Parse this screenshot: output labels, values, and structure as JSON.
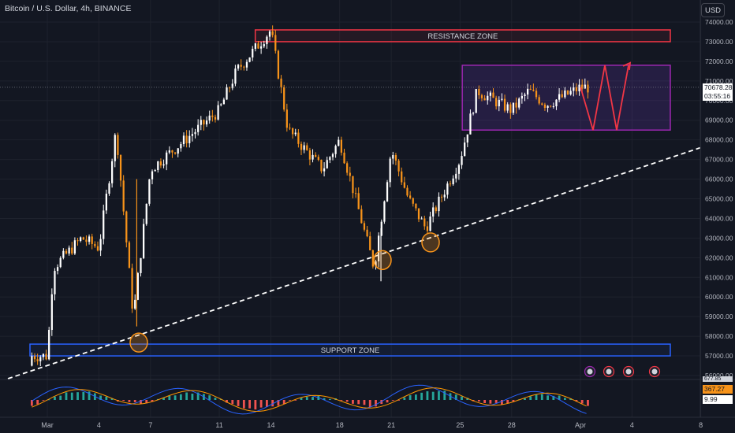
{
  "header": {
    "symbol_title": "Bitcoin / U.S. Dollar, 4h, BINANCE",
    "currency_label": "USD"
  },
  "price_axis": {
    "ticks": [
      "74000.00",
      "73000.00",
      "72000.00",
      "71000.00",
      "70000.00",
      "69000.00",
      "68000.00",
      "67000.00",
      "66000.00",
      "65000.00",
      "64000.00",
      "63000.00",
      "62000.00",
      "61000.00",
      "60000.00",
      "59000.00",
      "58000.00",
      "57000.00",
      "56000.00"
    ],
    "live_price": "70678.28",
    "countdown": "03:55:16"
  },
  "time_axis": {
    "labels": [
      "Mar",
      "4",
      "7",
      "11",
      "14",
      "18",
      "21",
      "25",
      "28",
      "Apr",
      "4",
      "8"
    ]
  },
  "indicator": {
    "macd_value": "367.27",
    "signal_value": "9.99",
    "top_value": "677.85"
  },
  "annotations": {
    "resistance_label": "RESISTANCE ZONE",
    "support_label": "SUPPORT ZONE"
  },
  "colors": {
    "background": "#131722",
    "bull_candle": "#ffffff",
    "bear_candle": "#f7931a",
    "resistance": "#f23645",
    "support": "#2962ff",
    "range_box": "#9c27b0",
    "forecast_arrow": "#f23645",
    "trendline": "#ffffff",
    "macd_line": "#2962ff",
    "signal_line": "#ff9800",
    "hist_positive": "#26a69a",
    "hist_negative": "#ef5350"
  },
  "chart_data": {
    "type": "candlestick",
    "title": "Bitcoin / U.S. Dollar, 4h, BINANCE",
    "ylim": [
      56000,
      74200
    ],
    "x_range": [
      "Mar 1",
      "Apr 8"
    ],
    "keypoints": [
      {
        "t": "Mar 1",
        "price": 57000
      },
      {
        "t": "Mar 1",
        "price": 61500
      },
      {
        "t": "Mar 3",
        "price": 63000
      },
      {
        "t": "Mar 4",
        "price": 62500
      },
      {
        "t": "Mar 5",
        "price": 68500
      },
      {
        "t": "Mar 6",
        "price": 59000
      },
      {
        "t": "Mar 7",
        "price": 66500
      },
      {
        "t": "Mar 9",
        "price": 68000
      },
      {
        "t": "Mar 11",
        "price": 69500
      },
      {
        "t": "Mar 12",
        "price": 71500
      },
      {
        "t": "Mar 14",
        "price": 73600
      },
      {
        "t": "Mar 15",
        "price": 68500
      },
      {
        "t": "Mar 17",
        "price": 66500
      },
      {
        "t": "Mar 18",
        "price": 68000
      },
      {
        "t": "Mar 20",
        "price": 61500
      },
      {
        "t": "Mar 21",
        "price": 67500
      },
      {
        "t": "Mar 22",
        "price": 65000
      },
      {
        "t": "Mar 23",
        "price": 63500
      },
      {
        "t": "Mar 25",
        "price": 67000
      },
      {
        "t": "Mar 26",
        "price": 70500
      },
      {
        "t": "Mar 27",
        "price": 70000
      },
      {
        "t": "Mar 28",
        "price": 69500
      },
      {
        "t": "Mar 29",
        "price": 70500
      },
      {
        "t": "Mar 30",
        "price": 69800
      },
      {
        "t": "Mar 31",
        "price": 70200
      },
      {
        "t": "Apr 1",
        "price": 70678
      }
    ],
    "resistance_zone": [
      73000,
      73600
    ],
    "support_zone": [
      57000,
      57600
    ],
    "range_box": {
      "t_start": "Mar 26",
      "t_end": "Apr 4",
      "price_low": 68500,
      "price_high": 71800
    },
    "projection": [
      70700,
      68500,
      71800,
      68500,
      71800
    ],
    "trendline": [
      {
        "t": "Mar 1",
        "price": 56000
      },
      {
        "t": "Apr 8",
        "price": 67600
      }
    ],
    "circled_lows": [
      {
        "t": "Mar 6",
        "price": 57600
      },
      {
        "t": "Mar 20",
        "price": 61800
      },
      {
        "t": "Mar 23",
        "price": 62700
      }
    ],
    "grid": true,
    "legend": "none"
  }
}
